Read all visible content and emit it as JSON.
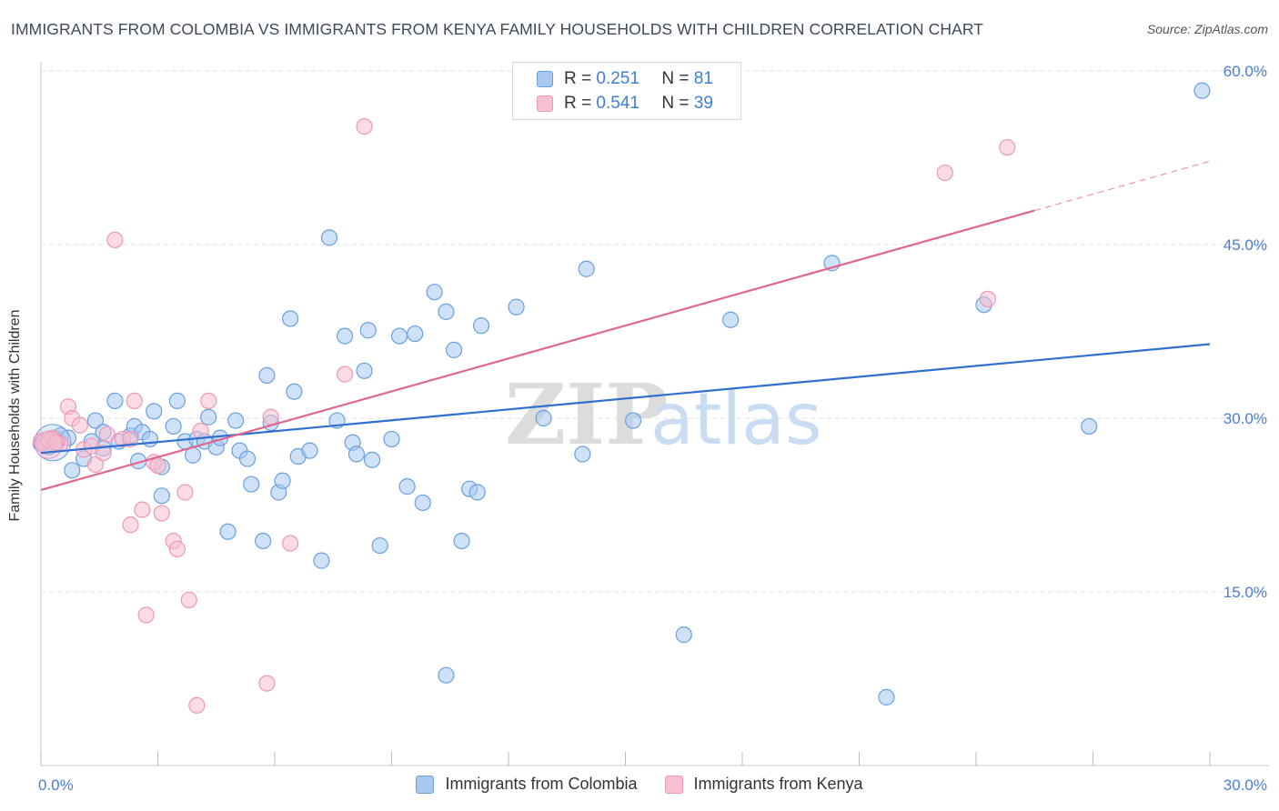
{
  "header": {
    "title": "IMMIGRANTS FROM COLOMBIA VS IMMIGRANTS FROM KENYA FAMILY HOUSEHOLDS WITH CHILDREN CORRELATION CHART",
    "source": "Source: ZipAtlas.com"
  },
  "watermark": {
    "zip": "ZIP",
    "atlas": "atlas"
  },
  "legend_top": {
    "rows": [
      {
        "r_label": "R =",
        "r_value": "0.251",
        "n_label": "N =",
        "n_value": "81"
      },
      {
        "r_label": "R =",
        "r_value": "0.541",
        "n_label": "N =",
        "n_value": "39"
      }
    ]
  },
  "legend_bottom": {
    "items": [
      {
        "label": "Immigrants from Colombia"
      },
      {
        "label": "Immigrants from Kenya"
      }
    ]
  },
  "colors": {
    "colombia_fill": "#a8c8f0",
    "colombia_stroke": "#6a9fe0",
    "colombia_line": "#2f6fd0",
    "kenya_fill": "#f7bfd0",
    "kenya_stroke": "#ee98b4",
    "kenya_line": "#e06690",
    "tick_text": "#4a7fcc",
    "grid": "#e3e3e3"
  },
  "chart_data": {
    "type": "scatter",
    "title": "IMMIGRANTS FROM COLOMBIA VS IMMIGRANTS FROM KENYA FAMILY HOUSEHOLDS WITH CHILDREN CORRELATION CHART",
    "xlabel": "",
    "ylabel": "Family Households with Children",
    "xlim": [
      0,
      30
    ],
    "ylim": [
      0,
      60
    ],
    "x_tick_labels": [
      "0.0%",
      "30.0%"
    ],
    "y_tick_labels": [
      "15.0%",
      "30.0%",
      "45.0%",
      "60.0%"
    ],
    "y_ticks": [
      15,
      30,
      45,
      60
    ],
    "grid": true,
    "legend_position": "top-center",
    "series": [
      {
        "name": "Immigrants from Colombia",
        "R": 0.251,
        "N": 81,
        "trend": {
          "x": [
            0,
            30
          ],
          "y": [
            27.0,
            36.4
          ]
        },
        "points": [
          [
            0.1,
            28.0
          ],
          [
            0.3,
            27.8
          ],
          [
            0.4,
            28.2
          ],
          [
            0.5,
            28.5
          ],
          [
            0.7,
            28.3
          ],
          [
            0.8,
            25.5
          ],
          [
            1.1,
            26.5
          ],
          [
            1.3,
            28.0
          ],
          [
            1.4,
            29.8
          ],
          [
            1.6,
            28.8
          ],
          [
            1.9,
            31.5
          ],
          [
            2.0,
            28.0
          ],
          [
            2.3,
            28.5
          ],
          [
            2.4,
            29.3
          ],
          [
            2.5,
            26.3
          ],
          [
            2.6,
            28.8
          ],
          [
            2.8,
            28.2
          ],
          [
            2.9,
            30.6
          ],
          [
            3.1,
            25.8
          ],
          [
            3.1,
            23.3
          ],
          [
            3.4,
            29.3
          ],
          [
            3.5,
            31.5
          ],
          [
            3.7,
            28.0
          ],
          [
            3.9,
            26.8
          ],
          [
            4.0,
            28.2
          ],
          [
            4.2,
            28.0
          ],
          [
            4.3,
            30.1
          ],
          [
            4.5,
            27.5
          ],
          [
            4.6,
            28.3
          ],
          [
            4.8,
            20.2
          ],
          [
            5.0,
            29.8
          ],
          [
            5.1,
            27.2
          ],
          [
            5.3,
            26.5
          ],
          [
            5.4,
            24.3
          ],
          [
            5.7,
            19.4
          ],
          [
            5.8,
            33.7
          ],
          [
            5.9,
            29.6
          ],
          [
            6.1,
            23.6
          ],
          [
            6.2,
            24.6
          ],
          [
            6.4,
            38.6
          ],
          [
            6.5,
            32.3
          ],
          [
            6.6,
            26.7
          ],
          [
            6.9,
            27.2
          ],
          [
            7.2,
            17.7
          ],
          [
            7.4,
            45.6
          ],
          [
            7.6,
            29.8
          ],
          [
            7.8,
            37.1
          ],
          [
            8.0,
            27.9
          ],
          [
            8.1,
            26.9
          ],
          [
            8.3,
            34.1
          ],
          [
            8.4,
            37.6
          ],
          [
            8.5,
            26.4
          ],
          [
            8.7,
            19.0
          ],
          [
            9.0,
            28.2
          ],
          [
            9.2,
            37.1
          ],
          [
            9.4,
            24.1
          ],
          [
            9.6,
            37.3
          ],
          [
            9.8,
            22.7
          ],
          [
            10.1,
            40.9
          ],
          [
            10.4,
            39.2
          ],
          [
            10.6,
            35.9
          ],
          [
            10.8,
            19.4
          ],
          [
            11.0,
            23.9
          ],
          [
            11.2,
            23.6
          ],
          [
            10.4,
            7.8
          ],
          [
            11.3,
            38.0
          ],
          [
            12.2,
            39.6
          ],
          [
            12.9,
            30.0
          ],
          [
            13.9,
            26.9
          ],
          [
            14.0,
            42.9
          ],
          [
            15.2,
            29.8
          ],
          [
            16.5,
            11.3
          ],
          [
            17.7,
            38.5
          ],
          [
            20.3,
            43.4
          ],
          [
            21.7,
            5.9
          ],
          [
            24.2,
            39.8
          ],
          [
            26.9,
            29.3
          ],
          [
            29.8,
            58.3
          ],
          [
            1.6,
            27.4
          ],
          [
            0.2,
            27.5
          ],
          [
            0.0,
            27.8
          ]
        ]
      },
      {
        "name": "Immigrants from Kenya",
        "R": 0.541,
        "N": 39,
        "trend": {
          "x": [
            0,
            30
          ],
          "y": [
            23.8,
            52.2
          ]
        },
        "trend_solid_to_x": 25.5,
        "points": [
          [
            0.0,
            28.0
          ],
          [
            0.1,
            27.6
          ],
          [
            0.3,
            28.3
          ],
          [
            0.5,
            27.8
          ],
          [
            0.7,
            31.0
          ],
          [
            0.8,
            30.0
          ],
          [
            1.0,
            29.4
          ],
          [
            1.1,
            27.3
          ],
          [
            1.3,
            27.6
          ],
          [
            1.4,
            26.0
          ],
          [
            1.6,
            27.0
          ],
          [
            1.7,
            28.6
          ],
          [
            1.9,
            45.4
          ],
          [
            2.1,
            28.2
          ],
          [
            2.3,
            28.2
          ],
          [
            2.3,
            20.8
          ],
          [
            2.4,
            31.5
          ],
          [
            2.6,
            22.1
          ],
          [
            2.7,
            13.0
          ],
          [
            2.9,
            26.2
          ],
          [
            3.0,
            25.9
          ],
          [
            3.1,
            21.8
          ],
          [
            3.4,
            19.4
          ],
          [
            3.5,
            18.7
          ],
          [
            3.7,
            23.6
          ],
          [
            3.8,
            14.3
          ],
          [
            4.0,
            5.2
          ],
          [
            4.1,
            28.9
          ],
          [
            4.3,
            31.5
          ],
          [
            5.8,
            7.1
          ],
          [
            5.9,
            30.1
          ],
          [
            6.4,
            19.2
          ],
          [
            7.8,
            33.8
          ],
          [
            8.3,
            55.2
          ],
          [
            23.2,
            51.2
          ],
          [
            24.3,
            40.3
          ],
          [
            24.8,
            53.4
          ],
          [
            0.2,
            28.1
          ],
          [
            0.4,
            27.9
          ]
        ]
      }
    ]
  }
}
